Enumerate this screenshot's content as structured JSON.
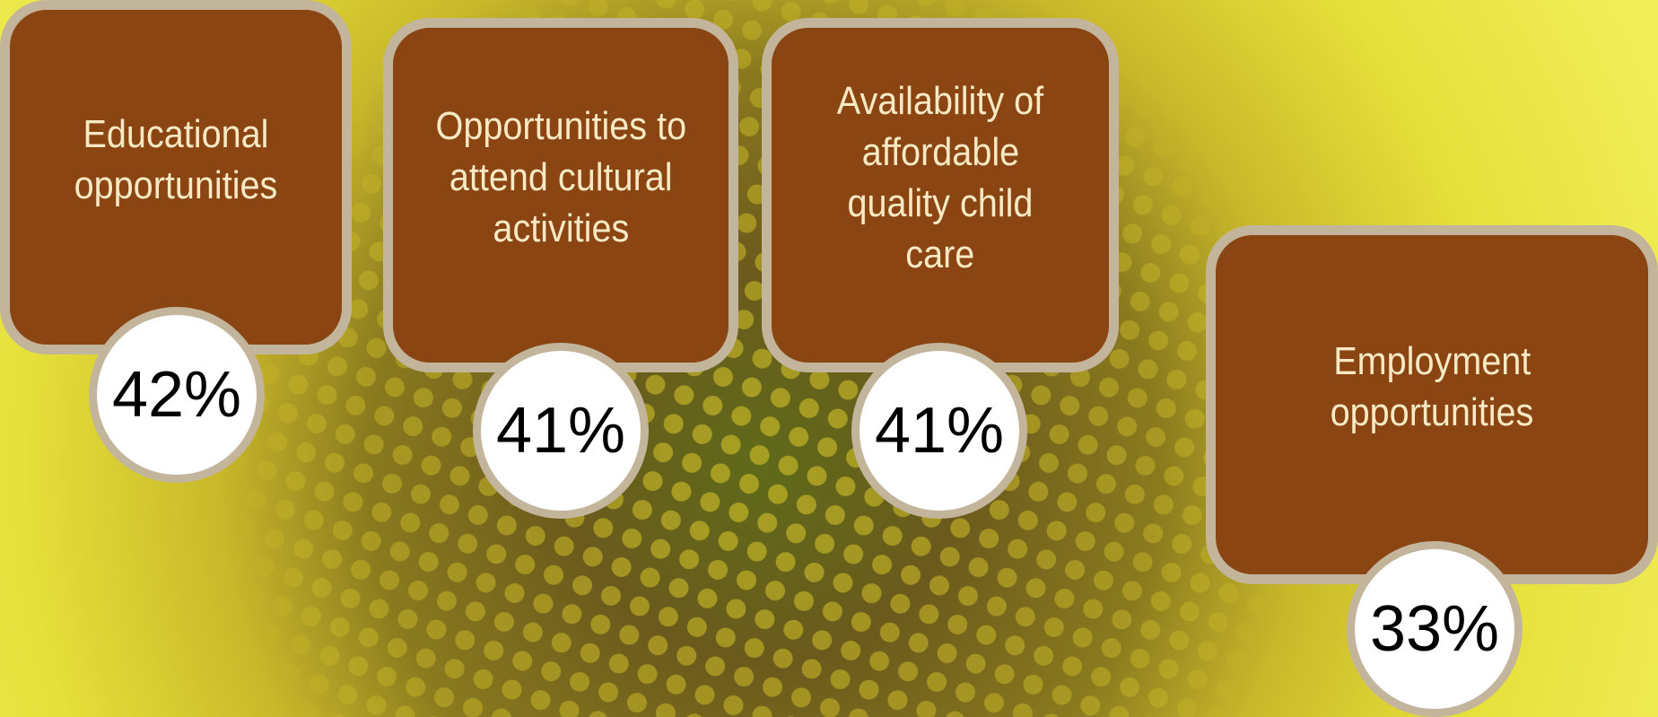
{
  "cards": [
    {
      "label": [
        "Educational",
        "opportunities"
      ],
      "value": "42%"
    },
    {
      "label": [
        "Opportunities to",
        "attend cultural",
        "activities"
      ],
      "value": "41%"
    },
    {
      "label": [
        "Availability of",
        "affordable",
        "quality child",
        "care"
      ],
      "value": "41%"
    },
    {
      "label": [
        "Employment",
        "opportunities"
      ],
      "value": "33%"
    }
  ]
}
